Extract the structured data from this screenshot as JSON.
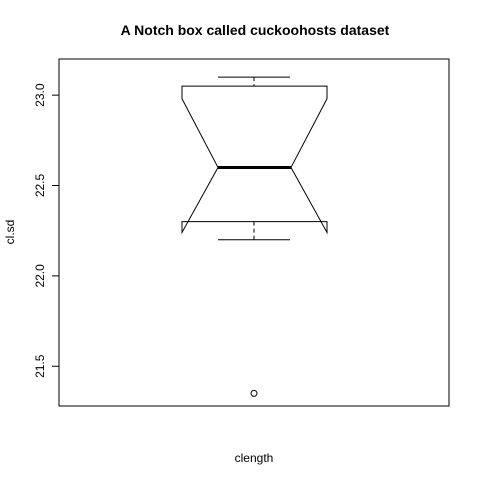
{
  "chart_data": {
    "type": "boxplot",
    "title": "A Notch box called cuckoohosts dataset",
    "xlabel": "clength",
    "ylabel": "cl.sd",
    "ylim": [
      21.28,
      23.2
    ],
    "yticks": [
      "21.5",
      "22.0",
      "22.5",
      "23.0"
    ],
    "notched": true,
    "box": {
      "whisker_low": 22.2,
      "q1": 22.3,
      "notch_low": 22.24,
      "median": 22.6,
      "notch_high": 22.98,
      "q3": 23.05,
      "whisker_high": 23.1
    },
    "outliers": [
      21.35
    ]
  }
}
